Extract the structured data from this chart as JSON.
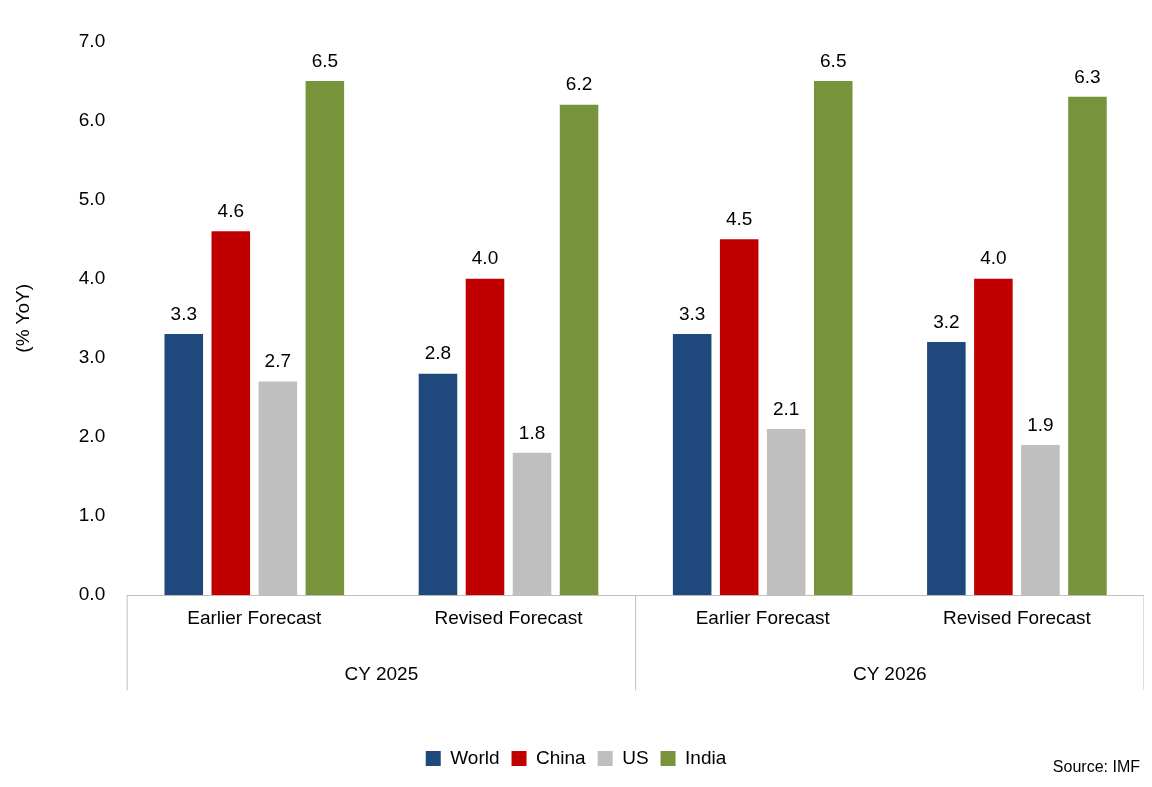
{
  "chart_data": {
    "type": "bar",
    "ylabel": "(% YoY)",
    "categories": [
      "Earlier Forecast",
      "Revised Forecast",
      "Earlier Forecast",
      "Revised Forecast"
    ],
    "series": [
      {
        "name": "World",
        "color": "#1f497d",
        "values": [
          3.3,
          2.8,
          3.3,
          3.2
        ],
        "value_labels": [
          "3.3",
          "2.8",
          "3.3",
          "3.2"
        ]
      },
      {
        "name": "China",
        "color": "#c00000",
        "values": [
          4.6,
          4.0,
          4.5,
          4.0
        ],
        "value_labels": [
          "4.6",
          "4.0",
          "4.5",
          "4.0"
        ]
      },
      {
        "name": "US",
        "color": "#bfbfbf",
        "values": [
          2.7,
          1.8,
          2.1,
          1.9
        ],
        "value_labels": [
          "2.7",
          "1.8",
          "2.1",
          "1.9"
        ]
      },
      {
        "name": "India",
        "color": "#77933c",
        "values": [
          6.5,
          6.2,
          6.5,
          6.3
        ],
        "value_labels": [
          "6.5",
          "6.2",
          "6.5",
          "6.3"
        ]
      }
    ],
    "ylim": [
      0,
      7
    ],
    "yticks": [
      {
        "value": 0,
        "label": "0.0"
      },
      {
        "value": 1,
        "label": "1.0"
      },
      {
        "value": 2,
        "label": "2.0"
      },
      {
        "value": 3,
        "label": "3.0"
      },
      {
        "value": 4,
        "label": "4.0"
      },
      {
        "value": 5,
        "label": "5.0"
      },
      {
        "value": 6,
        "label": "6.0"
      },
      {
        "value": 7,
        "label": "7.0"
      }
    ],
    "grid": false,
    "legend": "bottom",
    "annotations": [
      "CY 2025",
      "CY 2026",
      "Source: IMF"
    ]
  }
}
